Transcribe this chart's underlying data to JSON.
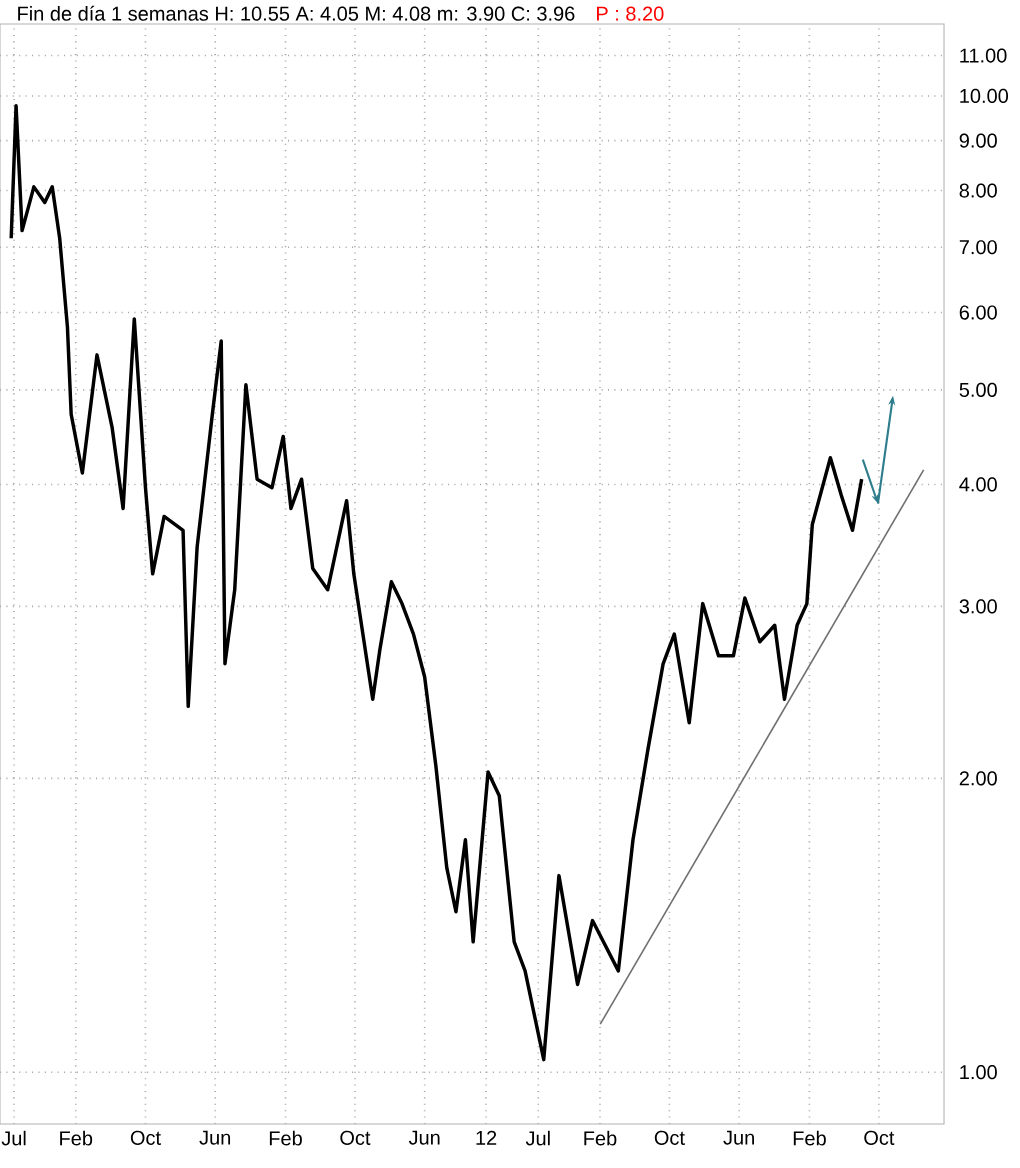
{
  "chart_data": {
    "type": "line",
    "title": "Fin de día 1 semanas  H: 10.55  A: 4.05  M: 4.08  m: 3.90  C: 3.96",
    "subtitle": "P : 8.20",
    "x": [
      "2007-06-21",
      "2007-07-08",
      "2007-07-29",
      "2007-09-08",
      "2007-10-16",
      "2007-11-11",
      "2007-12-07",
      "2008-01-03",
      "2008-01-16",
      "2008-02-24",
      "2008-04-15",
      "2008-06-07",
      "2008-07-15",
      "2008-08-23",
      "2008-10-01",
      "2008-10-26",
      "2008-12-05",
      "2009-02-09",
      "2009-02-27",
      "2009-03-30",
      "2009-05-22",
      "2009-06-22",
      "2009-07-05",
      "2009-08-08",
      "2009-09-16",
      "2009-10-25",
      "2009-12-16",
      "2010-01-24",
      "2010-02-20",
      "2010-03-29",
      "2010-05-07",
      "2010-06-28",
      "2010-09-02",
      "2010-09-27",
      "2010-12-02",
      "2010-12-27",
      "2011-02-05",
      "2011-03-14",
      "2011-04-23",
      "2011-06-01",
      "2011-07-10",
      "2011-08-17",
      "2011-09-18",
      "2011-10-21",
      "2011-11-17",
      "2012-01-08",
      "2012-02-16",
      "2012-04-08",
      "2012-05-16",
      "2012-07-20",
      "2012-09-11",
      "2012-11-15",
      "2013-01-06",
      "2013-04-06",
      "2013-05-27",
      "2013-07-18",
      "2013-09-09",
      "2013-10-18",
      "2013-12-09",
      "2014-01-25",
      "2014-03-21",
      "2014-05-12",
      "2014-06-21",
      "2014-08-12",
      "2014-10-03",
      "2014-11-06",
      "2014-12-20",
      "2015-01-23",
      "2015-02-11",
      "2015-04-15",
      "2015-05-23",
      "2015-07-01",
      "2015-08-02"
    ],
    "series": [
      {
        "color": "#000000",
        "values": [
          7.15,
          9.77,
          7.28,
          8.07,
          7.78,
          8.07,
          7.15,
          5.8,
          4.72,
          4.11,
          5.43,
          4.57,
          3.78,
          5.91,
          3.97,
          3.24,
          3.71,
          3.59,
          2.37,
          3.45,
          4.72,
          5.61,
          2.62,
          3.12,
          5.06,
          4.05,
          3.97,
          4.48,
          3.78,
          4.05,
          3.28,
          3.12,
          3.85,
          3.24,
          2.41,
          2.71,
          3.18,
          3.02,
          2.81,
          2.54,
          2.06,
          1.62,
          1.46,
          1.73,
          1.36,
          2.03,
          1.92,
          1.36,
          1.27,
          1.03,
          1.59,
          1.23,
          1.43,
          1.27,
          1.73,
          2.14,
          2.62,
          2.81,
          2.28,
          3.02,
          2.67,
          2.67,
          3.06,
          2.76,
          2.87,
          2.41,
          2.87,
          3.02,
          3.64,
          4.26,
          3.9,
          3.59,
          4.05
        ]
      },
      {
        "type": "line",
        "color": "#707070",
        "x": [
          "2013-02-02",
          "2016-03-05"
        ],
        "values": [
          1.12,
          4.14
        ]
      }
    ],
    "xlim": [
      "2007-05-13",
      "2016-05-15"
    ],
    "ylim": [
      0.885,
      11.85
    ],
    "log": "y",
    "grid": true,
    "xticks": [
      {
        "value": "2007-07-01",
        "label": "Jul"
      },
      {
        "value": "2008-02-01",
        "label": "Feb"
      },
      {
        "value": "2008-10-01",
        "label": "Oct"
      },
      {
        "value": "2009-06-01",
        "label": "Jun"
      },
      {
        "value": "2010-02-01",
        "label": "Feb"
      },
      {
        "value": "2010-10-01",
        "label": "Oct"
      },
      {
        "value": "2011-06-01",
        "label": "Jun"
      },
      {
        "value": "2012-01-01",
        "label": "12"
      },
      {
        "value": "2012-07-01",
        "label": "Jul"
      },
      {
        "value": "2013-02-01",
        "label": "Feb"
      },
      {
        "value": "2013-10-01",
        "label": "Oct"
      },
      {
        "value": "2014-06-01",
        "label": "Jun"
      },
      {
        "value": "2015-02-01",
        "label": "Feb"
      },
      {
        "value": "2015-10-01",
        "label": "Oct"
      }
    ],
    "yticks": [
      {
        "value": 1,
        "label": "1.00"
      },
      {
        "value": 2,
        "label": "2.00"
      },
      {
        "value": 3,
        "label": "3.00"
      },
      {
        "value": 4,
        "label": "4.00"
      },
      {
        "value": 5,
        "label": "5.00"
      },
      {
        "value": 6,
        "label": "6.00"
      },
      {
        "value": 7,
        "label": "7.00"
      },
      {
        "value": 8,
        "label": "8.00"
      },
      {
        "value": 9,
        "label": "9.00"
      },
      {
        "value": 10,
        "label": "10.00"
      },
      {
        "value": 11,
        "label": "11.00"
      }
    ]
  }
}
